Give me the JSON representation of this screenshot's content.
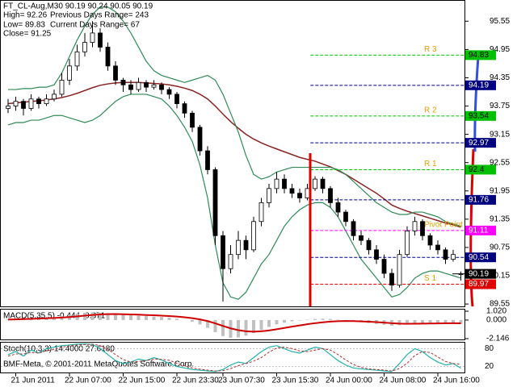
{
  "chart_data": {
    "type": "candlestick",
    "info": [
      "FT_CL-Aug,M30  90.19 90.24 90.05 90.19",
      "High= 92.26",
      "Previous Days Range= 243",
      "Low= 89.83",
      "Current Days Range= 67",
      "Close= 91.25"
    ],
    "categories": [
      null,
      "21 Jun 2011",
      null,
      null,
      null,
      null,
      null,
      null,
      "22 Jun 07:00",
      null,
      null,
      null,
      null,
      null,
      null,
      "22 Jun 15:00",
      null,
      null,
      null,
      null,
      null,
      null,
      "22 Jun 23:30",
      null,
      null,
      null,
      null,
      null,
      "23 Jun 07:30",
      null,
      null,
      null,
      null,
      null,
      null,
      "23 Jun 15:30",
      null,
      null,
      null,
      null,
      null,
      null,
      "24 Jun 00:00",
      null,
      null,
      null,
      null,
      null,
      null,
      "24 Jun 08:00",
      null,
      null,
      null,
      null,
      null,
      null,
      "24 Jun 16:00",
      null,
      null,
      null
    ],
    "candles": [
      [
        93.7,
        93.9,
        93.6,
        93.75
      ],
      [
        93.75,
        93.95,
        93.65,
        93.85
      ],
      [
        93.85,
        93.9,
        93.55,
        93.7
      ],
      [
        93.7,
        94.0,
        93.65,
        93.9
      ],
      [
        93.9,
        93.95,
        93.7,
        93.8
      ],
      [
        93.8,
        94.0,
        93.75,
        93.9
      ],
      [
        93.9,
        94.1,
        93.85,
        94.0
      ],
      [
        94.0,
        94.45,
        93.95,
        94.3
      ],
      [
        94.3,
        94.75,
        94.2,
        94.6
      ],
      [
        94.6,
        95.05,
        94.5,
        94.9
      ],
      [
        94.9,
        95.3,
        94.8,
        95.1
      ],
      [
        95.1,
        95.55,
        95.0,
        95.3
      ],
      [
        95.3,
        95.4,
        94.9,
        95.0
      ],
      [
        95.0,
        95.1,
        94.5,
        94.6
      ],
      [
        94.6,
        94.7,
        94.2,
        94.3
      ],
      [
        94.3,
        94.35,
        94.05,
        94.2
      ],
      [
        94.2,
        94.3,
        94.0,
        94.1
      ],
      [
        94.1,
        94.35,
        94.05,
        94.25
      ],
      [
        94.25,
        94.3,
        94.05,
        94.15
      ],
      [
        94.15,
        94.3,
        94.1,
        94.2
      ],
      [
        94.2,
        94.25,
        94.0,
        94.1
      ],
      [
        94.1,
        94.15,
        93.9,
        94.0
      ],
      [
        94.0,
        94.05,
        93.7,
        93.8
      ],
      [
        93.8,
        93.85,
        93.5,
        93.6
      ],
      [
        93.6,
        93.65,
        93.2,
        93.3
      ],
      [
        93.3,
        93.35,
        92.7,
        92.8
      ],
      [
        92.8,
        92.9,
        92.3,
        92.4
      ],
      [
        92.4,
        92.45,
        90.8,
        91.0
      ],
      [
        91.0,
        91.1,
        89.6,
        90.3
      ],
      [
        90.3,
        90.8,
        90.2,
        90.6
      ],
      [
        90.6,
        91.1,
        90.5,
        90.9
      ],
      [
        90.9,
        91.0,
        90.5,
        90.7
      ],
      [
        90.7,
        91.4,
        90.65,
        91.3
      ],
      [
        91.3,
        91.8,
        91.2,
        91.7
      ],
      [
        91.7,
        92.1,
        91.6,
        92.0
      ],
      [
        92.0,
        92.35,
        91.9,
        92.2
      ],
      [
        92.2,
        92.3,
        91.9,
        92.0
      ],
      [
        92.0,
        92.1,
        91.8,
        91.9
      ],
      [
        91.9,
        92.0,
        91.7,
        91.8
      ],
      [
        91.8,
        92.1,
        91.75,
        92.0
      ],
      [
        92.0,
        92.26,
        91.95,
        92.2
      ],
      [
        92.2,
        92.25,
        91.9,
        92.0
      ],
      [
        92.0,
        92.05,
        91.6,
        91.7
      ],
      [
        91.7,
        91.8,
        91.4,
        91.5
      ],
      [
        91.5,
        91.55,
        91.2,
        91.3
      ],
      [
        91.3,
        91.35,
        90.9,
        91.0
      ],
      [
        91.0,
        91.1,
        90.8,
        90.9
      ],
      [
        90.9,
        90.95,
        90.6,
        90.7
      ],
      [
        90.7,
        90.8,
        90.4,
        90.5
      ],
      [
        90.5,
        90.6,
        90.1,
        90.2
      ],
      [
        90.2,
        90.3,
        89.83,
        89.95
      ],
      [
        89.95,
        90.7,
        89.9,
        90.6
      ],
      [
        90.6,
        91.2,
        90.55,
        91.1
      ],
      [
        91.1,
        91.4,
        91.0,
        91.3
      ],
      [
        91.3,
        91.35,
        90.9,
        91.0
      ],
      [
        91.0,
        91.05,
        90.7,
        90.8
      ],
      [
        90.8,
        90.9,
        90.6,
        90.7
      ],
      [
        90.7,
        90.75,
        90.4,
        90.5
      ],
      [
        90.5,
        90.7,
        90.45,
        90.6
      ],
      [
        90.19,
        90.24,
        90.05,
        90.19
      ]
    ],
    "overlays": [
      {
        "color": "#8b2323",
        "values": [
          93.8,
          93.82,
          93.83,
          93.85,
          93.86,
          93.88,
          93.9,
          93.93,
          93.97,
          94.02,
          94.08,
          94.14,
          94.19,
          94.22,
          94.24,
          94.25,
          94.25,
          94.25,
          94.24,
          94.23,
          94.22,
          94.2,
          94.17,
          94.13,
          94.08,
          94.0,
          93.9,
          93.75,
          93.58,
          93.42,
          93.28,
          93.15,
          93.05,
          92.97,
          92.9,
          92.84,
          92.78,
          92.72,
          92.66,
          92.62,
          92.58,
          92.52,
          92.46,
          92.38,
          92.3,
          92.2,
          92.1,
          92.0,
          91.9,
          91.78,
          91.65,
          91.58,
          91.52,
          91.47,
          91.42,
          91.37,
          91.32,
          91.27,
          91.23,
          91.18
        ]
      },
      {
        "color": "#2e8b57",
        "values": [
          94.1,
          94.1,
          94.12,
          94.12,
          94.15,
          94.15,
          94.2,
          94.45,
          94.8,
          95.15,
          95.45,
          95.7,
          95.85,
          95.85,
          95.75,
          95.55,
          95.3,
          95.0,
          94.7,
          94.5,
          94.4,
          94.35,
          94.3,
          94.25,
          94.3,
          94.35,
          94.4,
          94.3,
          94.0,
          93.6,
          93.2,
          92.7,
          92.3,
          92.2,
          92.25,
          92.35,
          92.4,
          92.45,
          92.45,
          92.45,
          92.45,
          92.45,
          92.45,
          92.4,
          92.3,
          92.15,
          92.0,
          91.85,
          91.7,
          91.6,
          91.5,
          91.45,
          91.45,
          91.5,
          91.5,
          91.45,
          91.4,
          91.3,
          91.25,
          91.2
        ]
      },
      {
        "color": "#2e8b57",
        "values": [
          93.35,
          93.4,
          93.4,
          93.45,
          93.45,
          93.5,
          93.55,
          93.55,
          93.5,
          93.45,
          93.4,
          93.45,
          93.55,
          93.7,
          93.85,
          93.95,
          94.0,
          94.0,
          94.0,
          93.95,
          93.9,
          93.75,
          93.55,
          93.3,
          93.0,
          92.5,
          91.8,
          90.8,
          90.0,
          89.7,
          89.65,
          89.8,
          90.1,
          90.4,
          90.6,
          90.9,
          91.2,
          91.4,
          91.55,
          91.65,
          91.7,
          91.7,
          91.6,
          91.4,
          91.1,
          90.8,
          90.5,
          90.3,
          90.1,
          89.9,
          89.7,
          89.75,
          89.9,
          90.1,
          90.2,
          90.25,
          90.25,
          90.2,
          90.15,
          90.1
        ]
      }
    ],
    "levels": [
      {
        "name": "R 3",
        "value": 94.83,
        "color": "#00c000"
      },
      {
        "value": 94.19,
        "color": "#000080"
      },
      {
        "name": "R 2",
        "value": 93.54,
        "color": "#00c000"
      },
      {
        "value": 92.97,
        "color": "#000080"
      },
      {
        "name": "R 1",
        "value": 92.4,
        "color": "#00c000"
      },
      {
        "value": 91.76,
        "color": "#000080"
      },
      {
        "name": "Pivot Point",
        "value": 91.11,
        "color": "#ff00ff"
      },
      {
        "value": 90.54,
        "color": "#000080"
      },
      {
        "name": "S 1",
        "value": 89.97,
        "color": "#e00000"
      }
    ],
    "last_price": {
      "value": 90.19,
      "color": "#000000"
    },
    "ylim": [
      89.5,
      96.0
    ],
    "yticks": [
      95.55,
      94.95,
      94.35,
      93.75,
      93.15,
      92.55,
      91.95,
      91.35,
      90.75,
      90.15,
      89.55
    ],
    "macd": {
      "label": "MACD(5,35,5) -0.444 -0.371",
      "hist_color": "#c0c0c0",
      "signal_color": "#d00000",
      "hist": [
        0.1,
        0.15,
        0.18,
        0.22,
        0.25,
        0.3,
        0.35,
        0.45,
        0.6,
        0.75,
        0.85,
        0.9,
        0.88,
        0.8,
        0.7,
        0.6,
        0.55,
        0.5,
        0.45,
        0.4,
        0.35,
        0.28,
        0.15,
        0.0,
        -0.2,
        -0.5,
        -0.9,
        -1.4,
        -1.85,
        -2.05,
        -2.0,
        -1.8,
        -1.5,
        -1.15,
        -0.8,
        -0.5,
        -0.3,
        -0.15,
        -0.05,
        0.05,
        0.12,
        0.15,
        0.12,
        0.05,
        -0.05,
        -0.15,
        -0.25,
        -0.35,
        -0.45,
        -0.55,
        -0.65,
        -0.6,
        -0.5,
        -0.4,
        -0.35,
        -0.35,
        -0.38,
        -0.4,
        -0.42,
        -0.444
      ],
      "signal": [
        0.05,
        0.08,
        0.11,
        0.14,
        0.17,
        0.2,
        0.24,
        0.29,
        0.35,
        0.43,
        0.51,
        0.59,
        0.65,
        0.68,
        0.69,
        0.67,
        0.65,
        0.62,
        0.58,
        0.55,
        0.51,
        0.46,
        0.4,
        0.32,
        0.22,
        0.08,
        -0.12,
        -0.38,
        -0.68,
        -0.96,
        -1.17,
        -1.3,
        -1.34,
        -1.3,
        -1.2,
        -1.06,
        -0.91,
        -0.76,
        -0.62,
        -0.48,
        -0.36,
        -0.26,
        -0.18,
        -0.13,
        -0.11,
        -0.12,
        -0.15,
        -0.19,
        -0.24,
        -0.3,
        -0.37,
        -0.41,
        -0.43,
        -0.42,
        -0.41,
        -0.4,
        -0.39,
        -0.38,
        -0.37,
        -0.371
      ],
      "ylim": [
        -2.146,
        1.02
      ],
      "yticks": [
        {
          "value": 1.02,
          "label": "1.020"
        },
        {
          "value": 0,
          "label": "0.000"
        },
        -2.146
      ]
    },
    "stoch": {
      "label": "Stoch(10,3,3) 14.4000 27.6180",
      "main_color": "#20b2aa",
      "signal_color": "#b03030",
      "main": [
        60,
        70,
        55,
        75,
        65,
        80,
        85,
        90,
        92,
        95,
        96,
        94,
        80,
        60,
        40,
        30,
        35,
        45,
        40,
        50,
        42,
        30,
        20,
        15,
        10,
        8,
        5,
        3,
        10,
        25,
        35,
        30,
        50,
        70,
        85,
        90,
        80,
        70,
        65,
        75,
        85,
        80,
        60,
        40,
        25,
        15,
        12,
        10,
        8,
        5,
        3,
        30,
        60,
        80,
        70,
        50,
        35,
        25,
        30,
        14.4
      ],
      "signal": [
        55,
        62,
        62,
        67,
        65,
        73,
        77,
        85,
        89,
        92,
        94,
        95,
        90,
        78,
        60,
        43,
        35,
        37,
        40,
        45,
        44,
        41,
        31,
        22,
        15,
        11,
        8,
        5,
        6,
        13,
        23,
        30,
        38,
        50,
        68,
        82,
        85,
        80,
        72,
        70,
        75,
        80,
        75,
        60,
        42,
        27,
        17,
        12,
        10,
        8,
        5,
        13,
        31,
        57,
        70,
        67,
        52,
        37,
        30,
        27.618
      ],
      "ylim": [
        0,
        100
      ],
      "yticks": [
        80,
        20
      ]
    },
    "watermark": "BMF-Meta, © 2001-2011 MetaQuotes Software Corp."
  }
}
